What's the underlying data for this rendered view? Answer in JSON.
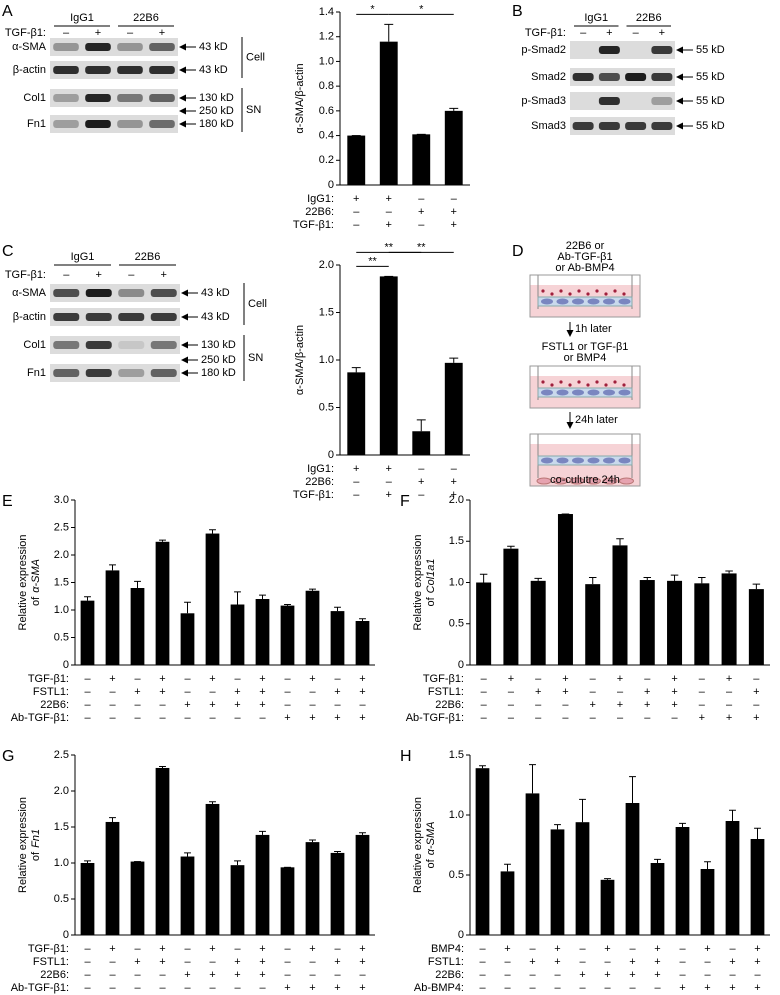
{
  "panels": [
    "A",
    "B",
    "C",
    "D",
    "E",
    "F",
    "G",
    "H"
  ],
  "blots": [
    {
      "headers": [
        "IgG1",
        "22B6"
      ],
      "treatment": "TGF-β1:",
      "signs": [
        "–",
        "+",
        "–",
        "+"
      ],
      "rows": [
        {
          "label": "α-SMA",
          "sizes": [
            "43 kD"
          ]
        },
        {
          "label": "β-actin",
          "sizes": [
            "43 kD"
          ]
        },
        {
          "label": "Col1",
          "sizes": [
            "130 kD"
          ]
        },
        {
          "label": "Fn1",
          "sizes": [
            "250 kD",
            "180 kD"
          ]
        }
      ],
      "groups": [
        "Cell",
        "SN"
      ]
    },
    {
      "headers": [
        "IgG1",
        "22B6"
      ],
      "treatment": "TGF-β1:",
      "signs": [
        "–",
        "+",
        "–",
        "+"
      ],
      "rows": [
        {
          "label": "p-Smad2",
          "sizes": [
            "55 kD"
          ]
        },
        {
          "label": "Smad2",
          "sizes": [
            "55 kD"
          ]
        },
        {
          "label": "p-Smad3",
          "sizes": [
            "55 kD"
          ]
        },
        {
          "label": "Smad3",
          "sizes": [
            "55 kD"
          ]
        }
      ],
      "groups": []
    },
    {
      "headers": [
        "IgG1",
        "22B6"
      ],
      "treatment": "TGF-β1:",
      "signs": [
        "–",
        "+",
        "–",
        "+"
      ],
      "rows": [
        {
          "label": "α-SMA",
          "sizes": [
            "43 kD"
          ]
        },
        {
          "label": "β-actin",
          "sizes": [
            "43 kD"
          ]
        },
        {
          "label": "Col1",
          "sizes": [
            "130 kD"
          ]
        },
        {
          "label": "Fn1",
          "sizes": [
            "250 kD",
            "180 kD"
          ]
        }
      ],
      "groups": [
        "Cell",
        "SN"
      ]
    }
  ],
  "diagram": {
    "steps": [
      [
        "22B6 or",
        "Ab-TGF-β1",
        "or Ab-BMP4"
      ],
      [
        "FSTL1 or TGF-β1",
        "or BMP4"
      ]
    ],
    "arrows": [
      "1h later",
      "24h later"
    ],
    "footer": "co-culutre 24h"
  },
  "chart_data": [
    {
      "type": "bar",
      "ylabel": [
        "α-SMA/β-actin"
      ],
      "color": "#000000",
      "ylim": [
        0,
        1.4
      ],
      "yticks": [
        0,
        0.2,
        0.4,
        0.6,
        0.8,
        {
          "value": 1,
          "label": "1.0"
        },
        1.2,
        1.4
      ],
      "values": [
        0.4,
        1.16,
        0.41,
        0.6
      ],
      "errors": [
        0,
        0.14,
        0,
        0.02
      ],
      "conditions": [
        {
          "label": "IgG1:",
          "signs": [
            "+",
            "+",
            "–",
            "–"
          ]
        },
        {
          "label": "22B6:",
          "signs": [
            "–",
            "–",
            "+",
            "+"
          ]
        },
        {
          "label": "TGF-β1:",
          "signs": [
            "–",
            "+",
            "–",
            "+"
          ]
        }
      ],
      "significance": [
        {
          "bars": [
            0,
            1
          ],
          "label": "*"
        },
        {
          "bars": [
            1,
            3
          ],
          "label": "*"
        }
      ]
    },
    {
      "type": "bar",
      "ylabel": [
        "α-SMA/β-actin"
      ],
      "color": "#000000",
      "ylim": [
        0,
        2
      ],
      "yticks": [
        0,
        0.5,
        {
          "value": 1,
          "label": "1.0"
        },
        1.5,
        {
          "value": 2,
          "label": "2.0"
        }
      ],
      "values": [
        0.87,
        1.88,
        0.25,
        0.97
      ],
      "errors": [
        0.05,
        0,
        0.12,
        0.05
      ],
      "conditions": [
        {
          "label": "IgG1:",
          "signs": [
            "+",
            "+",
            "–",
            "–"
          ]
        },
        {
          "label": "22B6:",
          "signs": [
            "–",
            "–",
            "+",
            "+"
          ]
        },
        {
          "label": "TGF-β1:",
          "signs": [
            "–",
            "+",
            "–",
            "+"
          ]
        }
      ],
      "significance": [
        {
          "bars": [
            0,
            1
          ],
          "label": "**"
        },
        {
          "bars": [
            0,
            2
          ],
          "label": "**"
        },
        {
          "bars": [
            1,
            3
          ],
          "label": "**"
        }
      ]
    },
    {
      "type": "bar",
      "ylabel": [
        "Relative expression"
      ],
      "gene": {
        "prefix": "of",
        "name": "α-SMA"
      },
      "color": "#000000",
      "ylim": [
        0,
        3
      ],
      "yticks": [
        0,
        0.5,
        {
          "value": 1,
          "label": "1.0"
        },
        1.5,
        {
          "value": 2,
          "label": "2.0"
        },
        2.5,
        {
          "value": 3,
          "label": "3.0"
        }
      ],
      "values": [
        1.17,
        1.72,
        1.4,
        2.24,
        0.94,
        2.39,
        1.1,
        1.2,
        1.08,
        1.35,
        0.98,
        0.8
      ],
      "errors": [
        0.07,
        0.1,
        0.12,
        0.03,
        0.2,
        0.07,
        0.23,
        0.07,
        0.02,
        0.03,
        0.07,
        0.04
      ],
      "conditions": [
        {
          "label": "TGF-β1:",
          "signs": [
            "–",
            "+",
            "–",
            "+",
            "–",
            "+",
            "–",
            "+",
            "–",
            "+",
            "–",
            "+"
          ]
        },
        {
          "label": "FSTL1:",
          "signs": [
            "–",
            "–",
            "+",
            "+",
            "–",
            "–",
            "+",
            "+",
            "–",
            "–",
            "+",
            "+"
          ]
        },
        {
          "label": "22B6:",
          "signs": [
            "–",
            "–",
            "–",
            "–",
            "+",
            "+",
            "+",
            "+",
            "–",
            "–",
            "–",
            "–"
          ]
        },
        {
          "label": "Ab-TGF-β1:",
          "signs": [
            "–",
            "–",
            "–",
            "–",
            "–",
            "–",
            "–",
            "–",
            "+",
            "+",
            "+",
            "+"
          ]
        }
      ],
      "significance": []
    },
    {
      "type": "bar",
      "ylabel": [
        "Relative expression"
      ],
      "gene": {
        "prefix": "of",
        "name": "Col1a1"
      },
      "color": "#000000",
      "ylim": [
        0,
        2
      ],
      "yticks": [
        0,
        0.5,
        {
          "value": 1,
          "label": "1.0"
        },
        1.5,
        {
          "value": 2,
          "label": "2.0"
        }
      ],
      "values": [
        1.0,
        1.41,
        1.02,
        1.83,
        0.98,
        1.45,
        1.03,
        1.02,
        0.99,
        1.11,
        0.92
      ],
      "errors": [
        0.1,
        0.03,
        0.03,
        0,
        0.08,
        0.08,
        0.03,
        0.07,
        0.07,
        0.03,
        0.06
      ],
      "conditions": [
        {
          "label": "TGF-β1:",
          "signs": [
            "–",
            "+",
            "–",
            "+",
            "–",
            "+",
            "–",
            "+",
            "–",
            "+",
            "–"
          ]
        },
        {
          "label": "FSTL1:",
          "signs": [
            "–",
            "–",
            "+",
            "+",
            "–",
            "–",
            "+",
            "+",
            "–",
            "–",
            "+"
          ]
        },
        {
          "label": "22B6:",
          "signs": [
            "–",
            "–",
            "–",
            "–",
            "+",
            "+",
            "+",
            "+",
            "–",
            "–",
            "–"
          ]
        },
        {
          "label": "Ab-TGF-β1:",
          "signs": [
            "–",
            "–",
            "–",
            "–",
            "–",
            "–",
            "–",
            "–",
            "+",
            "+",
            "+"
          ]
        }
      ],
      "significance": []
    },
    {
      "type": "bar",
      "ylabel": [
        "Relative expression"
      ],
      "gene": {
        "prefix": "of",
        "name": "Fn1"
      },
      "color": "#000000",
      "ylim": [
        0,
        2.5
      ],
      "yticks": [
        0,
        0.5,
        {
          "value": 1,
          "label": "1.0"
        },
        1.5,
        {
          "value": 2,
          "label": "2.0"
        },
        2.5
      ],
      "values": [
        1.0,
        1.57,
        1.02,
        2.32,
        1.09,
        1.82,
        0.97,
        1.39,
        0.94,
        1.29,
        1.14,
        1.39
      ],
      "errors": [
        0.03,
        0.06,
        0,
        0.02,
        0.05,
        0.03,
        0.06,
        0.05,
        0,
        0.03,
        0.02,
        0.03
      ],
      "conditions": [
        {
          "label": "TGF-β1:",
          "signs": [
            "–",
            "+",
            "–",
            "+",
            "–",
            "+",
            "–",
            "+",
            "–",
            "+",
            "–",
            "+"
          ]
        },
        {
          "label": "FSTL1:",
          "signs": [
            "–",
            "–",
            "+",
            "+",
            "–",
            "–",
            "+",
            "+",
            "–",
            "–",
            "+",
            "+"
          ]
        },
        {
          "label": "22B6:",
          "signs": [
            "–",
            "–",
            "–",
            "–",
            "+",
            "+",
            "+",
            "+",
            "–",
            "–",
            "–",
            "–"
          ]
        },
        {
          "label": "Ab-TGF-β1:",
          "signs": [
            "–",
            "–",
            "–",
            "–",
            "–",
            "–",
            "–",
            "–",
            "+",
            "+",
            "+",
            "+"
          ]
        }
      ],
      "significance": []
    },
    {
      "type": "bar",
      "ylabel": [
        "Relative expression"
      ],
      "gene": {
        "prefix": "of",
        "name": "α-SMA"
      },
      "color": "#000000",
      "ylim": [
        0,
        1.5
      ],
      "yticks": [
        0,
        0.5,
        {
          "value": 1,
          "label": "1.0"
        },
        1.5
      ],
      "values": [
        1.39,
        0.53,
        1.18,
        0.88,
        0.94,
        0.46,
        1.1,
        0.6,
        0.9,
        0.55,
        0.95,
        0.8
      ],
      "errors": [
        0.02,
        0.06,
        0.24,
        0.04,
        0.19,
        0.01,
        0.22,
        0.03,
        0.03,
        0.06,
        0.09,
        0.09
      ],
      "conditions": [
        {
          "label": "BMP4:",
          "signs": [
            "–",
            "+",
            "–",
            "+",
            "–",
            "+",
            "–",
            "+",
            "–",
            "+",
            "–",
            "+"
          ]
        },
        {
          "label": "FSTL1:",
          "signs": [
            "–",
            "–",
            "+",
            "+",
            "–",
            "–",
            "+",
            "+",
            "–",
            "–",
            "+",
            "+"
          ]
        },
        {
          "label": "22B6:",
          "signs": [
            "–",
            "–",
            "–",
            "–",
            "+",
            "+",
            "+",
            "+",
            "–",
            "–",
            "–",
            "–"
          ]
        },
        {
          "label": "Ab-BMP4:",
          "signs": [
            "–",
            "–",
            "–",
            "–",
            "–",
            "–",
            "–",
            "–",
            "+",
            "+",
            "+",
            "+"
          ]
        }
      ],
      "significance": []
    }
  ]
}
